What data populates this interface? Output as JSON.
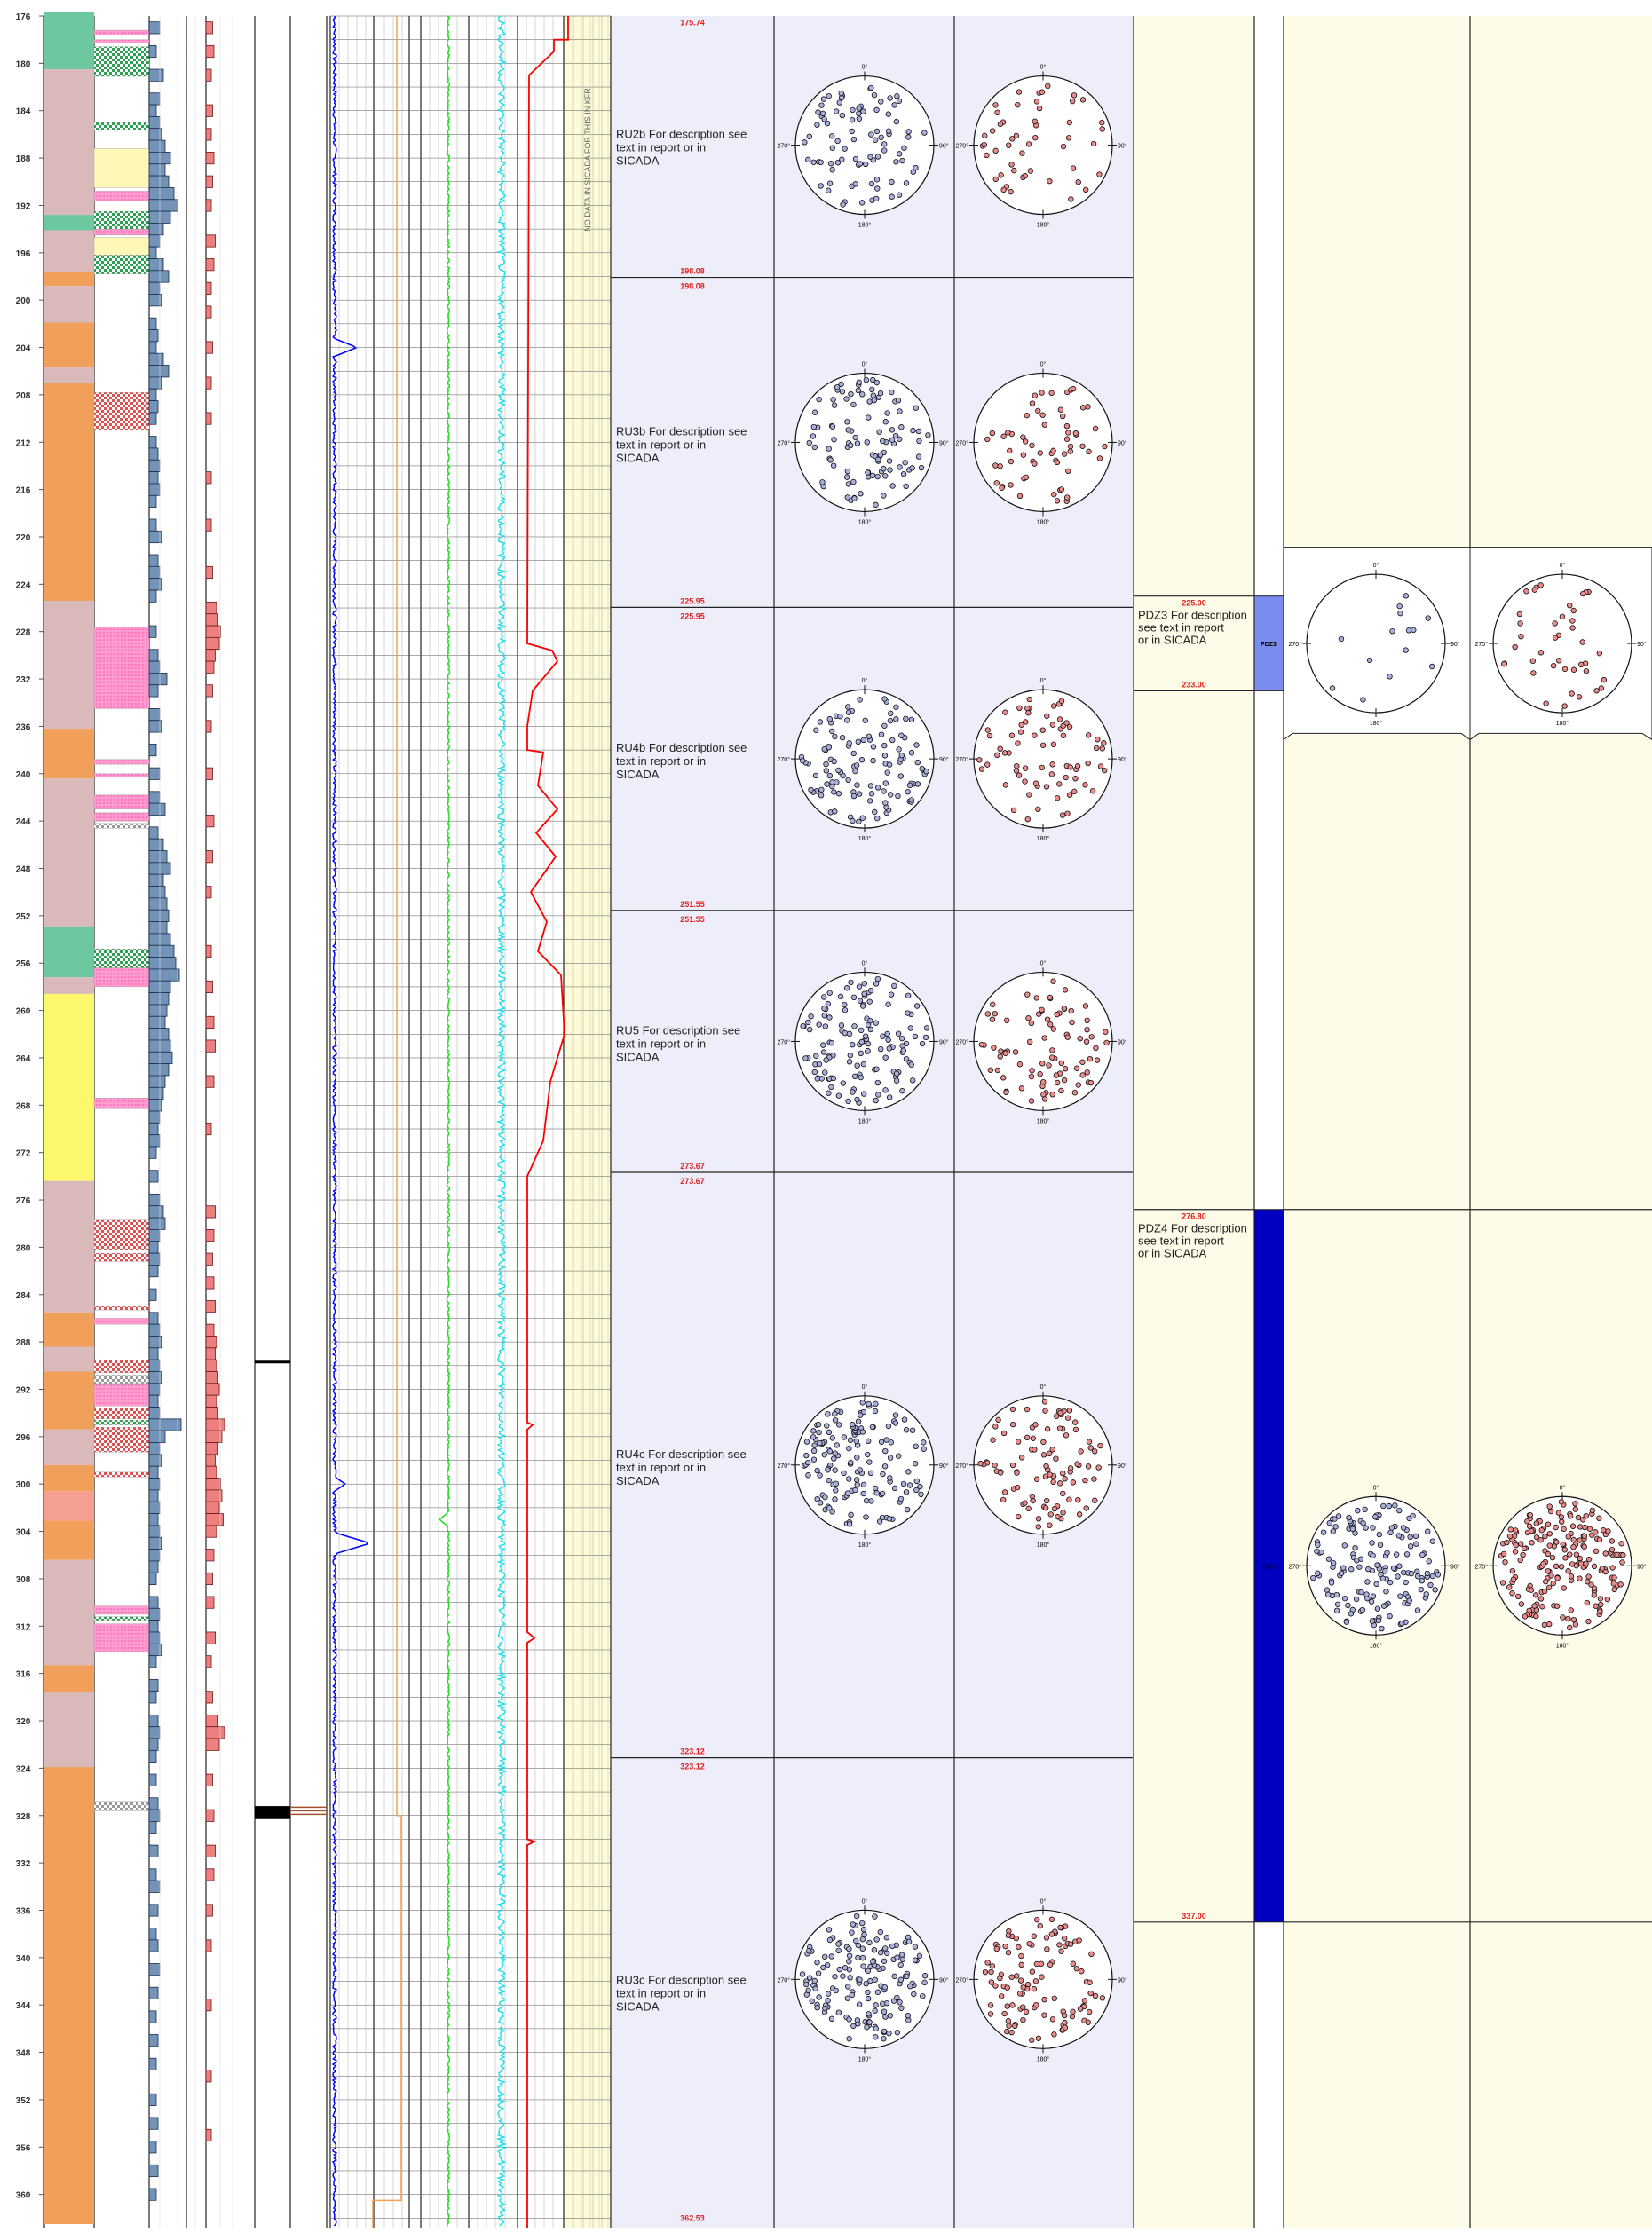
{
  "depth_scale": {
    "min": 176,
    "max": 360,
    "ticks": [
      "176",
      "180",
      "184",
      "188",
      "192",
      "196",
      "200",
      "204",
      "208",
      "212",
      "216",
      "220",
      "224",
      "228",
      "232",
      "236",
      "240",
      "244",
      "248",
      "252",
      "256",
      "260",
      "264",
      "268",
      "272",
      "276",
      "280",
      "284",
      "288",
      "292",
      "296",
      "300",
      "304",
      "308",
      "312",
      "316",
      "320",
      "324",
      "328",
      "332",
      "336",
      "340",
      "344",
      "348",
      "352",
      "356",
      "360"
    ]
  },
  "no_data_note": "NO DATA IN SICADA FOR THIS IN KFR",
  "rock_units": [
    {
      "top": "175.74",
      "bottom": "198.08",
      "top_depth": 175.74,
      "bottom_depth": 198.08,
      "text": "RU2b For description see text in report or in SICADA"
    },
    {
      "top": "198.08",
      "bottom": "225.95",
      "top_depth": 198.08,
      "bottom_depth": 225.95,
      "text": "RU3b For description see text in report or in SICADA"
    },
    {
      "top": "225.95",
      "bottom": "251.55",
      "top_depth": 225.95,
      "bottom_depth": 251.55,
      "text": "RU4b For description see text in report or in SICADA"
    },
    {
      "top": "251.55",
      "bottom": "273.67",
      "top_depth": 251.55,
      "bottom_depth": 273.67,
      "text": "RU5 For description see text in report or in SICADA"
    },
    {
      "top": "273.67",
      "bottom": "323.12",
      "top_depth": 273.67,
      "bottom_depth": 323.12,
      "text": "RU4c For description see text in report or in SICADA"
    },
    {
      "top": "323.12",
      "bottom": "362.53",
      "top_depth": 323.12,
      "bottom_depth": 362.53,
      "text": "RU3c For description see text in report or in SICADA"
    }
  ],
  "deformation_zones": [
    {
      "top": "225.00",
      "bottom": "233.00",
      "top_depth": 225.0,
      "bottom_depth": 233.0,
      "text": "PDZ3 For description see text in report or in SICADA",
      "tag": "PDZ3",
      "color": "#7b8cf0"
    },
    {
      "top": "276.80",
      "bottom": "337.00",
      "top_depth": 276.8,
      "bottom_depth": 337.0,
      "text": "PDZ4 For description see text in report or in SICADA",
      "tag": "PDZ4",
      "color": "#0000c0"
    }
  ],
  "stereonet_labels": {
    "north": "0°",
    "east": "90°",
    "south": "180°",
    "west": "270°"
  },
  "colors": {
    "rock_panel_bg": "#eeeefa",
    "zone_panel_bg": "#fefce8",
    "depth_label": "#e02020",
    "pole_blue": "#a9b0dd",
    "pole_red": "#ec8a8a",
    "log_blue": "#0000ff",
    "log_green": "#22dd22",
    "log_cyan": "#22e0e8",
    "log_red": "#ff0000",
    "log_orange": "#f0a050",
    "rock_pink": "#d9b9b9",
    "rock_orange": "#f0a05a",
    "rock_green": "#6dc79f",
    "rock_yellow": "#fbf96b",
    "rock_salmon": "#f4a090",
    "bar_blue": "#7393b8",
    "bar_red": "#ee7f7f"
  },
  "rock_type_intervals": [
    {
      "from": 175.7,
      "to": 180.5,
      "kind": "green"
    },
    {
      "from": 180.5,
      "to": 181.7,
      "kind": "pink"
    },
    {
      "from": 181.7,
      "to": 192.8,
      "kind": "pink"
    },
    {
      "from": 192.8,
      "to": 194.1,
      "kind": "green"
    },
    {
      "from": 194.1,
      "to": 197.6,
      "kind": "pink"
    },
    {
      "from": 197.6,
      "to": 198.8,
      "kind": "orange"
    },
    {
      "from": 198.8,
      "to": 201.9,
      "kind": "pink"
    },
    {
      "from": 201.9,
      "to": 205.7,
      "kind": "orange"
    },
    {
      "from": 205.7,
      "to": 207.0,
      "kind": "pink"
    },
    {
      "from": 207.0,
      "to": 225.4,
      "kind": "orange"
    },
    {
      "from": 225.4,
      "to": 236.2,
      "kind": "pink"
    },
    {
      "from": 236.2,
      "to": 240.4,
      "kind": "orange"
    },
    {
      "from": 240.4,
      "to": 252.9,
      "kind": "pink"
    },
    {
      "from": 252.9,
      "to": 257.2,
      "kind": "green"
    },
    {
      "from": 257.2,
      "to": 258.6,
      "kind": "pink"
    },
    {
      "from": 258.6,
      "to": 274.4,
      "kind": "yellow"
    },
    {
      "from": 274.4,
      "to": 285.5,
      "kind": "pink"
    },
    {
      "from": 285.5,
      "to": 288.4,
      "kind": "orange"
    },
    {
      "from": 288.4,
      "to": 290.5,
      "kind": "pink"
    },
    {
      "from": 290.5,
      "to": 295.4,
      "kind": "orange"
    },
    {
      "from": 295.4,
      "to": 298.4,
      "kind": "pink"
    },
    {
      "from": 298.4,
      "to": 300.6,
      "kind": "orange"
    },
    {
      "from": 300.6,
      "to": 303.1,
      "kind": "salmon"
    },
    {
      "from": 303.1,
      "to": 306.4,
      "kind": "orange"
    },
    {
      "from": 306.4,
      "to": 315.3,
      "kind": "pink"
    },
    {
      "from": 315.3,
      "to": 317.6,
      "kind": "orange"
    },
    {
      "from": 317.6,
      "to": 323.9,
      "kind": "pink"
    },
    {
      "from": 323.9,
      "to": 362.5,
      "kind": "orange"
    }
  ],
  "fracture_marks": [
    {
      "from": 177.2,
      "to": 177.6,
      "kind": "pink"
    },
    {
      "from": 178.0,
      "to": 178.3,
      "kind": "pink"
    },
    {
      "from": 178.6,
      "to": 181.1,
      "kind": "green"
    },
    {
      "from": 185.0,
      "to": 185.6,
      "kind": "green"
    },
    {
      "from": 187.2,
      "to": 190.5,
      "kind": "yellow"
    },
    {
      "from": 190.8,
      "to": 191.6,
      "kind": "pink"
    },
    {
      "from": 192.5,
      "to": 194.0,
      "kind": "green"
    },
    {
      "from": 194.0,
      "to": 194.5,
      "kind": "pink"
    },
    {
      "from": 194.7,
      "to": 196.2,
      "kind": "yellow"
    },
    {
      "from": 196.2,
      "to": 197.8,
      "kind": "green"
    },
    {
      "from": 207.8,
      "to": 211.0,
      "kind": "red"
    },
    {
      "from": 227.6,
      "to": 234.5,
      "kind": "pink"
    },
    {
      "from": 238.8,
      "to": 239.2,
      "kind": "pink"
    },
    {
      "from": 240.0,
      "to": 240.3,
      "kind": "pink"
    },
    {
      "from": 241.8,
      "to": 243.0,
      "kind": "pink"
    },
    {
      "from": 243.3,
      "to": 244.0,
      "kind": "pink"
    },
    {
      "from": 244.2,
      "to": 244.6,
      "kind": "gray"
    },
    {
      "from": 254.8,
      "to": 256.4,
      "kind": "green"
    },
    {
      "from": 256.4,
      "to": 258.0,
      "kind": "pink"
    },
    {
      "from": 267.4,
      "to": 268.3,
      "kind": "pink"
    },
    {
      "from": 277.7,
      "to": 280.2,
      "kind": "red"
    },
    {
      "from": 280.5,
      "to": 281.2,
      "kind": "red"
    },
    {
      "from": 285.0,
      "to": 285.3,
      "kind": "red"
    },
    {
      "from": 286.0,
      "to": 286.5,
      "kind": "pink"
    },
    {
      "from": 289.5,
      "to": 290.6,
      "kind": "red"
    },
    {
      "from": 290.8,
      "to": 291.5,
      "kind": "gray"
    },
    {
      "from": 291.6,
      "to": 293.4,
      "kind": "pink"
    },
    {
      "from": 293.6,
      "to": 294.5,
      "kind": "red"
    },
    {
      "from": 294.6,
      "to": 295.0,
      "kind": "green"
    },
    {
      "from": 295.2,
      "to": 297.3,
      "kind": "red"
    },
    {
      "from": 299.0,
      "to": 299.4,
      "kind": "red"
    },
    {
      "from": 310.3,
      "to": 311.0,
      "kind": "pink"
    },
    {
      "from": 311.2,
      "to": 311.5,
      "kind": "green"
    },
    {
      "from": 311.8,
      "to": 314.2,
      "kind": "pink"
    },
    {
      "from": 326.8,
      "to": 327.6,
      "kind": "gray"
    }
  ],
  "frequency_bars_blue": [
    {
      "d": 177,
      "v": 0.3
    },
    {
      "d": 179,
      "v": 0.2
    },
    {
      "d": 181,
      "v": 0.4
    },
    {
      "d": 183,
      "v": 0.3
    },
    {
      "d": 184,
      "v": 0.2
    },
    {
      "d": 185,
      "v": 0.3
    },
    {
      "d": 186,
      "v": 0.35
    },
    {
      "d": 187,
      "v": 0.45
    },
    {
      "d": 188,
      "v": 0.6
    },
    {
      "d": 189,
      "v": 0.45
    },
    {
      "d": 190,
      "v": 0.55
    },
    {
      "d": 191,
      "v": 0.7
    },
    {
      "d": 192,
      "v": 0.8
    },
    {
      "d": 193,
      "v": 0.6
    },
    {
      "d": 194,
      "v": 0.4
    },
    {
      "d": 195,
      "v": 0.3
    },
    {
      "d": 196,
      "v": 0.2
    },
    {
      "d": 197,
      "v": 0.4
    },
    {
      "d": 198,
      "v": 0.55
    },
    {
      "d": 199,
      "v": 0.3
    },
    {
      "d": 200,
      "v": 0.35
    },
    {
      "d": 202,
      "v": 0.2
    },
    {
      "d": 203,
      "v": 0.25
    },
    {
      "d": 204,
      "v": 0.2
    },
    {
      "d": 205,
      "v": 0.4
    },
    {
      "d": 206,
      "v": 0.55
    },
    {
      "d": 207,
      "v": 0.35
    },
    {
      "d": 208,
      "v": 0.2
    },
    {
      "d": 209,
      "v": 0.25
    },
    {
      "d": 210,
      "v": 0.2
    },
    {
      "d": 212,
      "v": 0.2
    },
    {
      "d": 213,
      "v": 0.25
    },
    {
      "d": 214,
      "v": 0.3
    },
    {
      "d": 215,
      "v": 0.25
    },
    {
      "d": 216,
      "v": 0.3
    },
    {
      "d": 217,
      "v": 0.2
    },
    {
      "d": 219,
      "v": 0.2
    },
    {
      "d": 220,
      "v": 0.35
    },
    {
      "d": 222,
      "v": 0.25
    },
    {
      "d": 223,
      "v": 0.3
    },
    {
      "d": 224,
      "v": 0.35
    },
    {
      "d": 225,
      "v": 0.2
    },
    {
      "d": 228,
      "v": 0.2
    },
    {
      "d": 230,
      "v": 0.25
    },
    {
      "d": 231,
      "v": 0.3
    },
    {
      "d": 232,
      "v": 0.5
    },
    {
      "d": 233,
      "v": 0.25
    },
    {
      "d": 235,
      "v": 0.3
    },
    {
      "d": 236,
      "v": 0.35
    },
    {
      "d": 238,
      "v": 0.2
    },
    {
      "d": 240,
      "v": 0.3
    },
    {
      "d": 242,
      "v": 0.3
    },
    {
      "d": 243,
      "v": 0.45
    },
    {
      "d": 245,
      "v": 0.25
    },
    {
      "d": 246,
      "v": 0.4
    },
    {
      "d": 247,
      "v": 0.5
    },
    {
      "d": 248,
      "v": 0.6
    },
    {
      "d": 249,
      "v": 0.4
    },
    {
      "d": 250,
      "v": 0.45
    },
    {
      "d": 251,
      "v": 0.5
    },
    {
      "d": 252,
      "v": 0.55
    },
    {
      "d": 253,
      "v": 0.5
    },
    {
      "d": 254,
      "v": 0.6
    },
    {
      "d": 255,
      "v": 0.7
    },
    {
      "d": 256,
      "v": 0.75
    },
    {
      "d": 257,
      "v": 0.85
    },
    {
      "d": 258,
      "v": 0.6
    },
    {
      "d": 259,
      "v": 0.55
    },
    {
      "d": 260,
      "v": 0.5
    },
    {
      "d": 261,
      "v": 0.45
    },
    {
      "d": 262,
      "v": 0.55
    },
    {
      "d": 263,
      "v": 0.6
    },
    {
      "d": 264,
      "v": 0.65
    },
    {
      "d": 265,
      "v": 0.55
    },
    {
      "d": 266,
      "v": 0.45
    },
    {
      "d": 267,
      "v": 0.4
    },
    {
      "d": 268,
      "v": 0.35
    },
    {
      "d": 269,
      "v": 0.3
    },
    {
      "d": 270,
      "v": 0.25
    },
    {
      "d": 271,
      "v": 0.3
    },
    {
      "d": 272,
      "v": 0.2
    },
    {
      "d": 274,
      "v": 0.25
    },
    {
      "d": 276,
      "v": 0.3
    },
    {
      "d": 277,
      "v": 0.4
    },
    {
      "d": 278,
      "v": 0.45
    },
    {
      "d": 279,
      "v": 0.3
    },
    {
      "d": 280,
      "v": 0.25
    },
    {
      "d": 281,
      "v": 0.3
    },
    {
      "d": 282,
      "v": 0.25
    },
    {
      "d": 284,
      "v": 0.2
    },
    {
      "d": 286,
      "v": 0.25
    },
    {
      "d": 287,
      "v": 0.3
    },
    {
      "d": 288,
      "v": 0.35
    },
    {
      "d": 289,
      "v": 0.25
    },
    {
      "d": 290,
      "v": 0.3
    },
    {
      "d": 291,
      "v": 0.35
    },
    {
      "d": 292,
      "v": 0.3
    },
    {
      "d": 293,
      "v": 0.25
    },
    {
      "d": 294,
      "v": 0.3
    },
    {
      "d": 295,
      "v": 0.9
    },
    {
      "d": 296,
      "v": 0.45
    },
    {
      "d": 297,
      "v": 0.3
    },
    {
      "d": 298,
      "v": 0.35
    },
    {
      "d": 299,
      "v": 0.25
    },
    {
      "d": 300,
      "v": 0.3
    },
    {
      "d": 301,
      "v": 0.25
    },
    {
      "d": 302,
      "v": 0.3
    },
    {
      "d": 303,
      "v": 0.25
    },
    {
      "d": 304,
      "v": 0.3
    },
    {
      "d": 305,
      "v": 0.35
    },
    {
      "d": 306,
      "v": 0.3
    },
    {
      "d": 307,
      "v": 0.25
    },
    {
      "d": 308,
      "v": 0.2
    },
    {
      "d": 310,
      "v": 0.25
    },
    {
      "d": 311,
      "v": 0.3
    },
    {
      "d": 312,
      "v": 0.25
    },
    {
      "d": 313,
      "v": 0.3
    },
    {
      "d": 314,
      "v": 0.35
    },
    {
      "d": 315,
      "v": 0.2
    },
    {
      "d": 317,
      "v": 0.25
    },
    {
      "d": 318,
      "v": 0.2
    },
    {
      "d": 320,
      "v": 0.25
    },
    {
      "d": 321,
      "v": 0.3
    },
    {
      "d": 322,
      "v": 0.25
    },
    {
      "d": 323,
      "v": 0.2
    },
    {
      "d": 325,
      "v": 0.2
    },
    {
      "d": 327,
      "v": 0.25
    },
    {
      "d": 328,
      "v": 0.3
    },
    {
      "d": 329,
      "v": 0.2
    },
    {
      "d": 331,
      "v": 0.25
    },
    {
      "d": 333,
      "v": 0.2
    },
    {
      "d": 334,
      "v": 0.3
    },
    {
      "d": 336,
      "v": 0.25
    },
    {
      "d": 338,
      "v": 0.2
    },
    {
      "d": 339,
      "v": 0.25
    },
    {
      "d": 341,
      "v": 0.3
    },
    {
      "d": 343,
      "v": 0.25
    },
    {
      "d": 345,
      "v": 0.2
    },
    {
      "d": 347,
      "v": 0.25
    },
    {
      "d": 349,
      "v": 0.2
    },
    {
      "d": 352,
      "v": 0.2
    },
    {
      "d": 354,
      "v": 0.25
    },
    {
      "d": 356,
      "v": 0.2
    },
    {
      "d": 358,
      "v": 0.25
    },
    {
      "d": 360,
      "v": 0.2
    }
  ],
  "frequency_bars_red": [
    {
      "d": 177,
      "v": 0.25
    },
    {
      "d": 179,
      "v": 0.3
    },
    {
      "d": 181,
      "v": 0.2
    },
    {
      "d": 184,
      "v": 0.25
    },
    {
      "d": 186,
      "v": 0.2
    },
    {
      "d": 188,
      "v": 0.3
    },
    {
      "d": 190,
      "v": 0.25
    },
    {
      "d": 192,
      "v": 0.2
    },
    {
      "d": 195,
      "v": 0.35
    },
    {
      "d": 197,
      "v": 0.3
    },
    {
      "d": 199,
      "v": 0.2
    },
    {
      "d": 201,
      "v": 0.2
    },
    {
      "d": 204,
      "v": 0.25
    },
    {
      "d": 207,
      "v": 0.2
    },
    {
      "d": 210,
      "v": 0.2
    },
    {
      "d": 215,
      "v": 0.2
    },
    {
      "d": 219,
      "v": 0.2
    },
    {
      "d": 223,
      "v": 0.25
    },
    {
      "d": 226,
      "v": 0.4
    },
    {
      "d": 227,
      "v": 0.45
    },
    {
      "d": 228,
      "v": 0.55
    },
    {
      "d": 229,
      "v": 0.5
    },
    {
      "d": 230,
      "v": 0.35
    },
    {
      "d": 231,
      "v": 0.3
    },
    {
      "d": 233,
      "v": 0.25
    },
    {
      "d": 236,
      "v": 0.2
    },
    {
      "d": 240,
      "v": 0.25
    },
    {
      "d": 244,
      "v": 0.3
    },
    {
      "d": 247,
      "v": 0.25
    },
    {
      "d": 250,
      "v": 0.2
    },
    {
      "d": 255,
      "v": 0.2
    },
    {
      "d": 258,
      "v": 0.25
    },
    {
      "d": 261,
      "v": 0.3
    },
    {
      "d": 263,
      "v": 0.35
    },
    {
      "d": 266,
      "v": 0.3
    },
    {
      "d": 270,
      "v": 0.2
    },
    {
      "d": 277,
      "v": 0.35
    },
    {
      "d": 279,
      "v": 0.3
    },
    {
      "d": 281,
      "v": 0.25
    },
    {
      "d": 283,
      "v": 0.3
    },
    {
      "d": 285,
      "v": 0.35
    },
    {
      "d": 287,
      "v": 0.3
    },
    {
      "d": 288,
      "v": 0.4
    },
    {
      "d": 289,
      "v": 0.35
    },
    {
      "d": 290,
      "v": 0.4
    },
    {
      "d": 291,
      "v": 0.45
    },
    {
      "d": 292,
      "v": 0.5
    },
    {
      "d": 293,
      "v": 0.4
    },
    {
      "d": 294,
      "v": 0.45
    },
    {
      "d": 295,
      "v": 0.7
    },
    {
      "d": 296,
      "v": 0.6
    },
    {
      "d": 297,
      "v": 0.45
    },
    {
      "d": 298,
      "v": 0.35
    },
    {
      "d": 299,
      "v": 0.4
    },
    {
      "d": 300,
      "v": 0.55
    },
    {
      "d": 301,
      "v": 0.6
    },
    {
      "d": 302,
      "v": 0.5
    },
    {
      "d": 303,
      "v": 0.65
    },
    {
      "d": 304,
      "v": 0.4
    },
    {
      "d": 306,
      "v": 0.3
    },
    {
      "d": 308,
      "v": 0.25
    },
    {
      "d": 310,
      "v": 0.3
    },
    {
      "d": 313,
      "v": 0.35
    },
    {
      "d": 315,
      "v": 0.2
    },
    {
      "d": 318,
      "v": 0.25
    },
    {
      "d": 320,
      "v": 0.45
    },
    {
      "d": 321,
      "v": 0.7
    },
    {
      "d": 322,
      "v": 0.5
    },
    {
      "d": 325,
      "v": 0.25
    },
    {
      "d": 328,
      "v": 0.3
    },
    {
      "d": 331,
      "v": 0.35
    },
    {
      "d": 333,
      "v": 0.3
    },
    {
      "d": 336,
      "v": 0.25
    },
    {
      "d": 339,
      "v": 0.2
    },
    {
      "d": 344,
      "v": 0.2
    },
    {
      "d": 350,
      "v": 0.2
    },
    {
      "d": 355,
      "v": 0.2
    }
  ]
}
